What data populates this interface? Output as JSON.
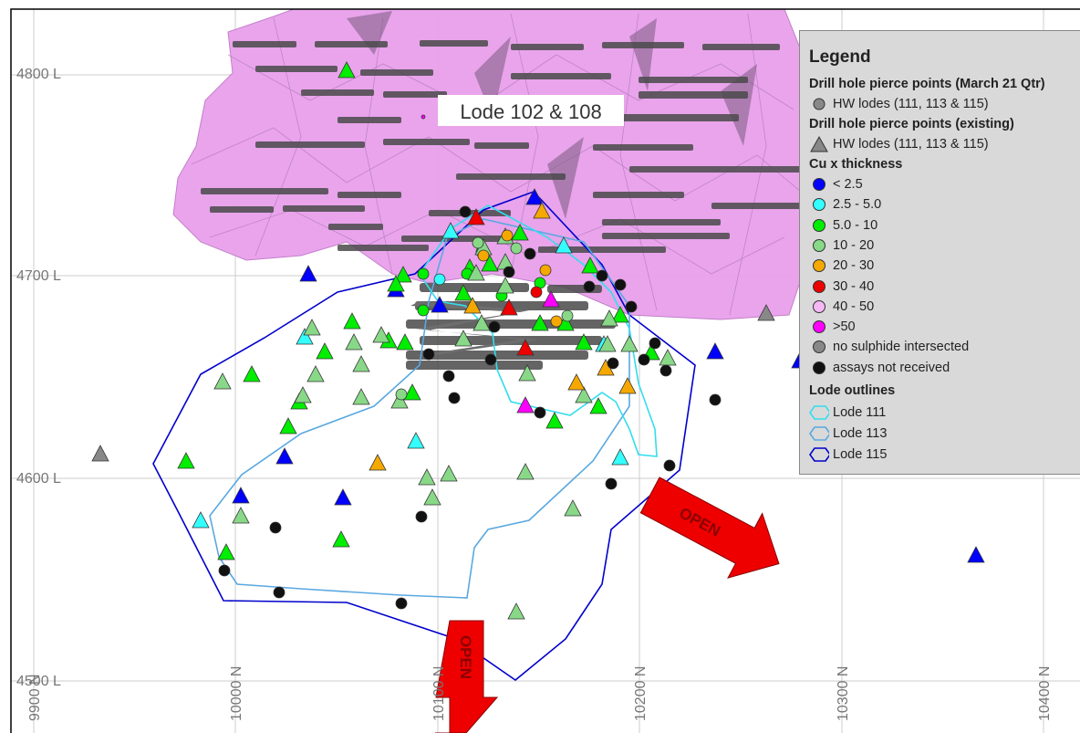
{
  "map": {
    "title_label": "Lode 102 & 108",
    "open_labels": [
      "OPEN",
      "OPEN"
    ],
    "colors": {
      "lt2_5": "#0000ff",
      "c2_5_5": "#33ffff",
      "c5_10": "#00ee00",
      "c10_20": "#88d888",
      "c20_30": "#f5a800",
      "c30_40": "#ee0000",
      "c40_50": "#f5b8f5",
      "gt50": "#ff00ff",
      "no_sulphide": "#888888",
      "not_received": "#111111",
      "lode_111": "#33ddee",
      "lode_113": "#5aa8e0",
      "lode_115": "#0000cc",
      "pink_lode": "#e8a0ec",
      "arrow": "#ee0000"
    },
    "level_labels": [
      "4800 L",
      "4700 L",
      "4600 L",
      "4500 L"
    ],
    "northing_labels": [
      "9900 N",
      "10000 N",
      "10100 N",
      "10200 N",
      "10300 N",
      "10400 N"
    ]
  },
  "legend": {
    "title": "Legend",
    "section_new": "Drill hole pierce points (March 21 Qtr)",
    "new_hw": "HW lodes (111, 113 & 115)",
    "section_existing": "Drill hole pierce points (existing)",
    "existing_hw": "HW lodes (111, 113 & 115)",
    "section_cu": "Cu x thickness",
    "cu_items": [
      {
        "label": "< 2.5",
        "color": "#0000ff"
      },
      {
        "label": "2.5 - 5.0",
        "color": "#33ffff"
      },
      {
        "label": "5.0 - 10",
        "color": "#00ee00"
      },
      {
        "label": "10 - 20",
        "color": "#88d888"
      },
      {
        "label": "20 - 30",
        "color": "#f5a800"
      },
      {
        "label": "30 - 40",
        "color": "#ee0000"
      },
      {
        "label": "40 - 50",
        "color": "#f5b8f5"
      },
      {
        "label": ">50",
        "color": "#ff00ff"
      },
      {
        "label": "no sulphide intersected",
        "color": "#888888"
      },
      {
        "label": "assays not received",
        "color": "#111111"
      }
    ],
    "section_outlines": "Lode outlines",
    "outline_items": [
      {
        "label": "Lode 111",
        "color": "#33ddee"
      },
      {
        "label": "Lode 113",
        "color": "#5aa8e0"
      },
      {
        "label": "Lode 115",
        "color": "#0000cc"
      }
    ]
  }
}
